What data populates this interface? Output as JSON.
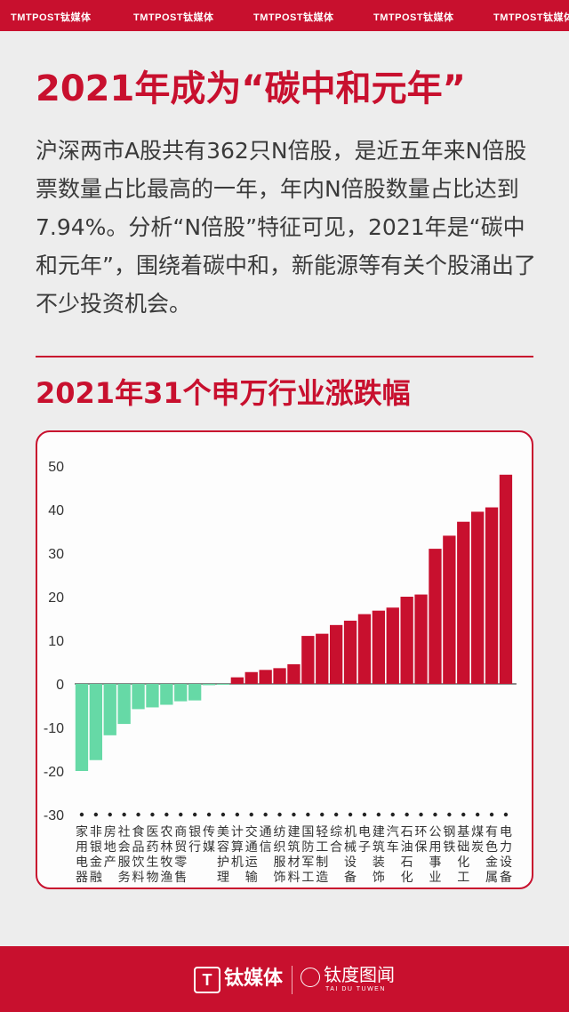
{
  "header": {
    "brand_left": "TMTPOST钛媒体",
    "brand_repeat": [
      "TMTPOST钛媒体",
      "TMTPOST钛媒体",
      "TMTPOST钛媒体",
      "TMTPOST钛媒体",
      "TMTPOST钛媒体"
    ]
  },
  "article": {
    "headline": "2021年成为“碳中和元年”",
    "body": "沪深两市A股共有362只N倍股，是近五年来N倍股票数量占比最高的一年，年内N倍股数量占比达到7.94%。分析“N倍股”特征可见，2021年是“碳中和元年”，围绕着碳中和，新能源等有关个股涌出了不少投资机会。"
  },
  "chart_data": {
    "type": "bar",
    "title": "2021年31个申万行业涨跌幅",
    "xlabel": "",
    "ylabel": "",
    "ylim": [
      -30,
      50
    ],
    "yticks": [
      50,
      40,
      30,
      20,
      10,
      0,
      -10,
      -20,
      -30
    ],
    "grid": false,
    "legend": "none",
    "categories": [
      "家用电器",
      "非银金融",
      "房地产",
      "社会服务",
      "食品饮料",
      "医药生物",
      "农林牧渔",
      "商贸零售",
      "银行",
      "传媒",
      "美容护理",
      "计算机",
      "交通运输",
      "通信",
      "纺织服饰",
      "建筑材料",
      "国防军工",
      "轻工制造",
      "综合",
      "机械设备",
      "电子",
      "建筑装饰",
      "汽车",
      "石油石化",
      "环保",
      "公用事业",
      "钢铁",
      "基础化工",
      "煤炭",
      "有色金属",
      "电力设备"
    ],
    "values": [
      -20.0,
      -17.5,
      -11.8,
      -9.2,
      -5.8,
      -5.4,
      -4.8,
      -4.0,
      -3.8,
      -0.3,
      -0.2,
      1.5,
      2.7,
      3.2,
      3.6,
      4.5,
      11.0,
      11.5,
      13.5,
      14.5,
      16.0,
      16.8,
      17.5,
      20.0,
      20.5,
      31.0,
      34.0,
      37.2,
      39.5,
      40.5,
      48.0
    ],
    "colors": {
      "positive": "#c8102e",
      "negative": "#66d9a6",
      "axis": "#444444"
    }
  },
  "footer": {
    "logo_glyph": "T",
    "logo_name": "钛媒体",
    "sub_brand": "钛度图闻",
    "sub_brand_roman": "TAI DU TUWEN"
  }
}
